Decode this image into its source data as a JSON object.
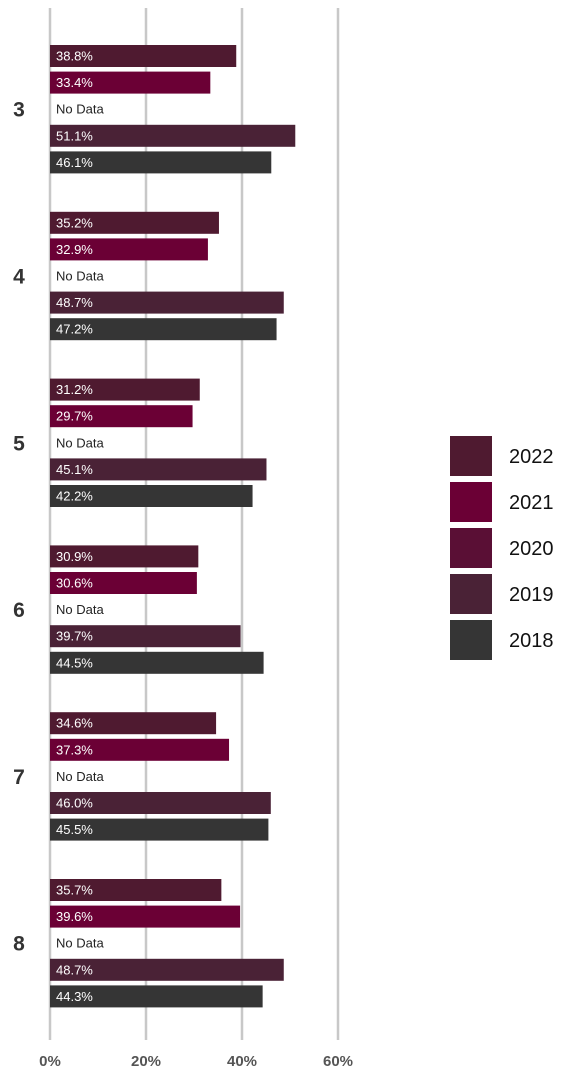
{
  "chart_data": {
    "type": "bar",
    "orientation": "horizontal",
    "categories": [
      "3",
      "4",
      "5",
      "6",
      "7",
      "8"
    ],
    "series": [
      {
        "name": "2022",
        "color": "#4f1a30",
        "values": [
          38.8,
          35.2,
          31.2,
          30.9,
          34.6,
          35.7
        ],
        "labels": [
          "38.8%",
          "35.2%",
          "31.2%",
          "30.9%",
          "34.6%",
          "35.7%"
        ]
      },
      {
        "name": "2021",
        "color": "#6b0035",
        "values": [
          33.4,
          32.9,
          29.7,
          30.6,
          37.3,
          39.6
        ],
        "labels": [
          "33.4%",
          "32.9%",
          "29.7%",
          "30.6%",
          "37.3%",
          "39.6%"
        ]
      },
      {
        "name": "2020",
        "color": "#5a0f35",
        "values": [
          null,
          null,
          null,
          null,
          null,
          null
        ],
        "labels": [
          "No Data",
          "No Data",
          "No Data",
          "No Data",
          "No Data",
          "No Data"
        ]
      },
      {
        "name": "2019",
        "color": "#4a2236",
        "values": [
          51.1,
          48.7,
          45.1,
          39.7,
          46.0,
          48.7
        ],
        "labels": [
          "51.1%",
          "48.7%",
          "45.1%",
          "39.7%",
          "46.0%",
          "48.7%"
        ]
      },
      {
        "name": "2018",
        "color": "#353535",
        "values": [
          46.1,
          47.2,
          42.2,
          44.5,
          45.5,
          44.3
        ],
        "labels": [
          "46.1%",
          "47.2%",
          "42.2%",
          "44.5%",
          "45.5%",
          "44.3%"
        ]
      }
    ],
    "x_ticks": [
      0,
      20,
      40,
      60
    ],
    "x_tick_labels": [
      "0%",
      "20%",
      "40%",
      "60%"
    ],
    "xlim": [
      0,
      60
    ],
    "grid": "vertical",
    "legend_position": "right",
    "title": "",
    "xlabel": "",
    "ylabel": ""
  }
}
